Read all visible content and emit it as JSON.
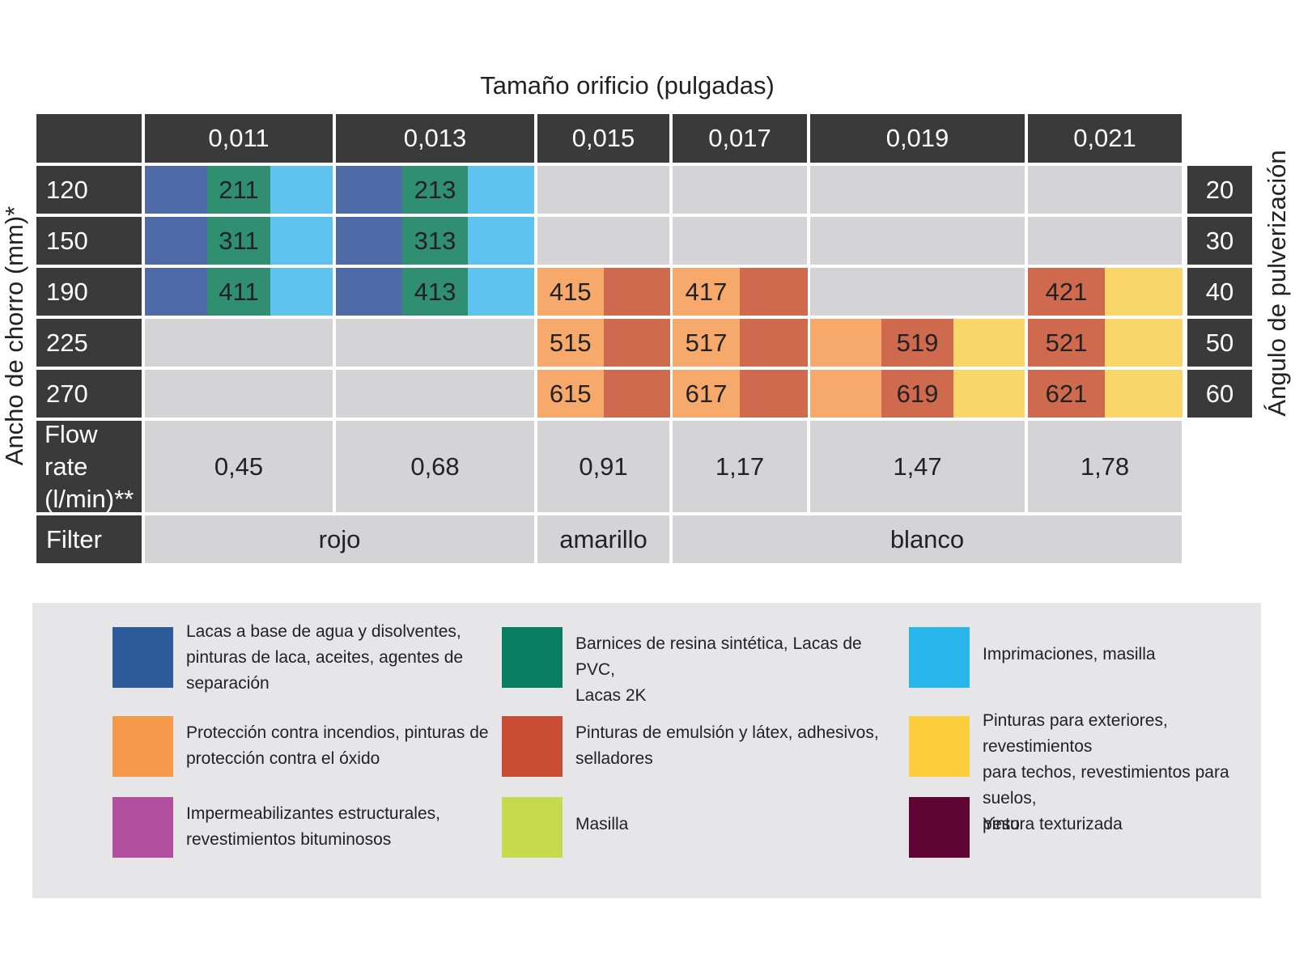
{
  "chart_data": {
    "type": "table",
    "title": "Tamaño orificio (pulgadas)",
    "left_axis_label": "Ancho de chorro (mm)*",
    "right_axis_label": "Ángulo de pulverización",
    "orifice_sizes": [
      "0,011",
      "0,013",
      "0,015",
      "0,017",
      "0,019",
      "0,021"
    ],
    "rows": [
      {
        "width": "120",
        "angle": "20",
        "cells": [
          {
            "code": "211",
            "colors": [
              "#4e6aa7",
              "#2f8f70",
              "#5fc3ef"
            ]
          },
          {
            "code": "213",
            "colors": [
              "#4e6aa7",
              "#2f8f70",
              "#5fc3ef"
            ]
          },
          {
            "code": "",
            "colors": []
          },
          {
            "code": "",
            "colors": []
          },
          {
            "code": "",
            "colors": []
          },
          {
            "code": "",
            "colors": []
          }
        ]
      },
      {
        "width": "150",
        "angle": "30",
        "cells": [
          {
            "code": "311",
            "colors": [
              "#4e6aa7",
              "#2f8f70",
              "#5fc3ef"
            ]
          },
          {
            "code": "313",
            "colors": [
              "#4e6aa7",
              "#2f8f70",
              "#5fc3ef"
            ]
          },
          {
            "code": "",
            "colors": []
          },
          {
            "code": "",
            "colors": []
          },
          {
            "code": "",
            "colors": []
          },
          {
            "code": "",
            "colors": []
          }
        ]
      },
      {
        "width": "190",
        "angle": "40",
        "cells": [
          {
            "code": "411",
            "colors": [
              "#4e6aa7",
              "#2f8f70",
              "#5fc3ef"
            ]
          },
          {
            "code": "413",
            "colors": [
              "#4e6aa7",
              "#2f8f70",
              "#5fc3ef"
            ]
          },
          {
            "code": "415",
            "colors": [
              "#f6a96a",
              "#cf6a4e"
            ]
          },
          {
            "code": "417",
            "colors": [
              "#f6a96a",
              "#cf6a4e"
            ]
          },
          {
            "code": "",
            "colors": []
          },
          {
            "code": "421",
            "colors": [
              "#cf6a4e",
              "#fad56a"
            ]
          }
        ]
      },
      {
        "width": "225",
        "angle": "50",
        "cells": [
          {
            "code": "",
            "colors": []
          },
          {
            "code": "",
            "colors": []
          },
          {
            "code": "515",
            "colors": [
              "#f6a96a",
              "#cf6a4e"
            ]
          },
          {
            "code": "517",
            "colors": [
              "#f6a96a",
              "#cf6a4e"
            ]
          },
          {
            "code": "519",
            "colors": [
              "#f6a96a",
              "#cf6a4e",
              "#fad56a"
            ]
          },
          {
            "code": "521",
            "colors": [
              "#cf6a4e",
              "#fad56a"
            ]
          }
        ]
      },
      {
        "width": "270",
        "angle": "60",
        "cells": [
          {
            "code": "",
            "colors": []
          },
          {
            "code": "",
            "colors": []
          },
          {
            "code": "615",
            "colors": [
              "#f6a96a",
              "#cf6a4e"
            ]
          },
          {
            "code": "617",
            "colors": [
              "#f6a96a",
              "#cf6a4e"
            ]
          },
          {
            "code": "619",
            "colors": [
              "#f6a96a",
              "#cf6a4e",
              "#fad56a"
            ]
          },
          {
            "code": "621",
            "colors": [
              "#cf6a4e",
              "#fad56a"
            ]
          }
        ]
      }
    ],
    "flow_rate": {
      "label_line1": "Flow rate",
      "label_line2": "(l/min)**",
      "values": [
        "0,45",
        "0,68",
        "0,91",
        "1,17",
        "1,47",
        "1,78"
      ]
    },
    "filter": {
      "label": "Filter",
      "groups": [
        {
          "text": "rojo",
          "span": [
            0,
            1
          ]
        },
        {
          "text": "amarillo",
          "span": [
            2,
            2
          ]
        },
        {
          "text": "blanco",
          "span": [
            3,
            5
          ]
        }
      ]
    }
  },
  "legend": [
    {
      "color": "#2d5a9a",
      "text": [
        "Lacas a base de agua y disolventes,",
        "pinturas de laca, aceites, agentes de",
        "separación"
      ]
    },
    {
      "color": "#087d62",
      "text": [
        "Barnices de resina sintética, Lacas de PVC,",
        "Lacas 2K"
      ]
    },
    {
      "color": "#29b6ea",
      "text": [
        "Imprimaciones, masilla"
      ]
    },
    {
      "color": "#f7994a",
      "text": [
        "Protección contra incendios, pinturas de",
        "protección contra el óxido"
      ]
    },
    {
      "color": "#c84d34",
      "text": [
        "Pinturas de emulsión y látex, adhesivos,",
        "selladores"
      ]
    },
    {
      "color": "#fdcf3c",
      "text": [
        "Pinturas para exteriores, revestimientos",
        "para techos, revestimientos para suelos,",
        "pintura texturizada"
      ]
    },
    {
      "color": "#b24f9e",
      "text": [
        "Impermeabilizantes estructurales,",
        "revestimientos bituminosos"
      ]
    },
    {
      "color": "#c6da4e",
      "text": [
        "Masilla"
      ]
    },
    {
      "color": "#600434",
      "text": [
        "Yeso"
      ]
    }
  ]
}
